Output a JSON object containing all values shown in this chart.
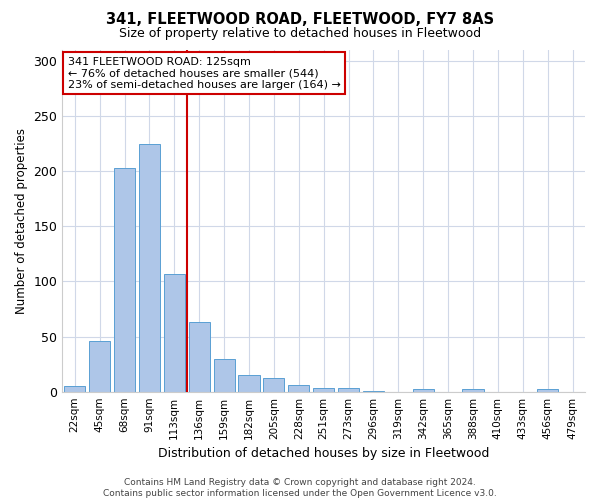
{
  "title": "341, FLEETWOOD ROAD, FLEETWOOD, FY7 8AS",
  "subtitle": "Size of property relative to detached houses in Fleetwood",
  "xlabel": "Distribution of detached houses by size in Fleetwood",
  "ylabel": "Number of detached properties",
  "categories": [
    "22sqm",
    "45sqm",
    "68sqm",
    "91sqm",
    "113sqm",
    "136sqm",
    "159sqm",
    "182sqm",
    "205sqm",
    "228sqm",
    "251sqm",
    "273sqm",
    "296sqm",
    "319sqm",
    "342sqm",
    "365sqm",
    "388sqm",
    "410sqm",
    "433sqm",
    "456sqm",
    "479sqm"
  ],
  "values": [
    5,
    46,
    203,
    225,
    107,
    63,
    30,
    15,
    12,
    6,
    3,
    3,
    1,
    0,
    2,
    0,
    2,
    0,
    0,
    2,
    0
  ],
  "bar_color": "#aec6e8",
  "bar_edge_color": "#5a9fd4",
  "vline_x": 4.5,
  "vline_color": "#cc0000",
  "annotation_line1": "341 FLEETWOOD ROAD: 125sqm",
  "annotation_line2": "← 76% of detached houses are smaller (544)",
  "annotation_line3": "23% of semi-detached houses are larger (164) →",
  "annotation_box_color": "#ffffff",
  "annotation_box_edge": "#cc0000",
  "ylim": [
    0,
    310
  ],
  "yticks": [
    0,
    50,
    100,
    150,
    200,
    250,
    300
  ],
  "footer": "Contains HM Land Registry data © Crown copyright and database right 2024.\nContains public sector information licensed under the Open Government Licence v3.0.",
  "bg_color": "#ffffff",
  "grid_color": "#d0d8e8"
}
